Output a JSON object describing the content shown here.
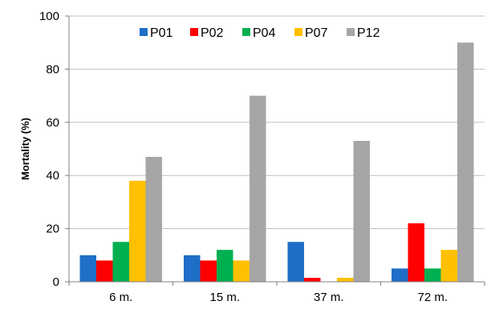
{
  "chart_data": {
    "type": "bar",
    "title": "",
    "xlabel": "",
    "ylabel": "Mortality  (%)",
    "ylim": [
      0,
      100
    ],
    "yticks": [
      0,
      20,
      40,
      60,
      80,
      100
    ],
    "grid": "horizontal",
    "legend_position": "top",
    "categories": [
      "6 m.",
      "15 m.",
      "37 m.",
      "72 m."
    ],
    "series": [
      {
        "name": "P01",
        "color": "#1f6ec8",
        "values": [
          10,
          10,
          15,
          5
        ]
      },
      {
        "name": "P02",
        "color": "#ff0000",
        "values": [
          8,
          8,
          1.5,
          22
        ]
      },
      {
        "name": "P04",
        "color": "#00b050",
        "values": [
          15,
          12,
          0,
          5
        ]
      },
      {
        "name": "P07",
        "color": "#ffc000",
        "values": [
          38,
          8,
          1.5,
          12
        ]
      },
      {
        "name": "P12",
        "color": "#a6a6a6",
        "values": [
          47,
          70,
          53,
          90
        ]
      }
    ]
  }
}
